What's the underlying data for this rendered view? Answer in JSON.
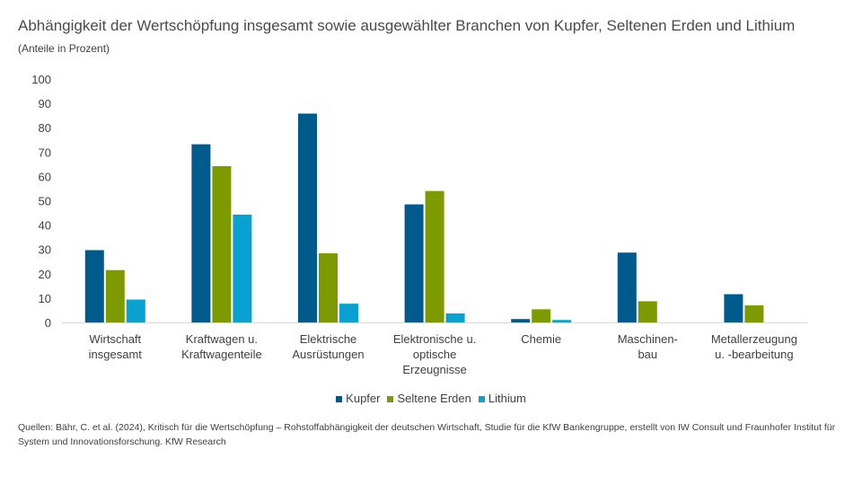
{
  "title": "Abhängigkeit der Wertschöpfung  insgesamt sowie ausgewählter Branchen von Kupfer, Seltenen Erden und Lithium",
  "subtitle": "(Anteile in Prozent)",
  "source": "Quellen:  Bähr, C. et al. (2024), Kritisch für die Wertschöpfung – Rohstoffabhängigkeit der deutschen Wirtschaft, Studie für die KfW Bankengruppe, erstellt von IW Consult und Fraunhofer Institut für System und Innovationsforschung. KfW Research",
  "chart_data": {
    "type": "bar",
    "categories": [
      [
        "Wirtschaft",
        "insgesamt"
      ],
      [
        "Kraftwagen u.",
        "Kraftwagenteile"
      ],
      [
        "Elektrische",
        "Ausrüstungen"
      ],
      [
        "Elektronische u.",
        "optische",
        "Erzeugnisse"
      ],
      [
        "Chemie"
      ],
      [
        "Maschinen-",
        "bau"
      ],
      [
        "Metallerzeugung",
        "u. -bearbeitung"
      ]
    ],
    "series": [
      {
        "name": "Kupfer",
        "color": "#005a8c",
        "values": [
          29.7,
          73.2,
          85.8,
          48.5,
          1.4,
          28.7,
          11.6
        ]
      },
      {
        "name": "Seltene Erden",
        "color": "#7d9a00",
        "values": [
          21.5,
          64.2,
          28.4,
          54.0,
          5.4,
          8.7,
          7.0
        ]
      },
      {
        "name": "Lithium",
        "color": "#0aa0cf",
        "values": [
          9.4,
          44.3,
          7.7,
          3.7,
          1.0,
          null,
          null
        ]
      }
    ],
    "yticks": [
      "0",
      "10",
      "20",
      "30",
      "40",
      "50",
      "60",
      "70",
      "80",
      "90",
      "100"
    ],
    "ylim": [
      0,
      100
    ],
    "grid": false,
    "legend": "bottom"
  }
}
